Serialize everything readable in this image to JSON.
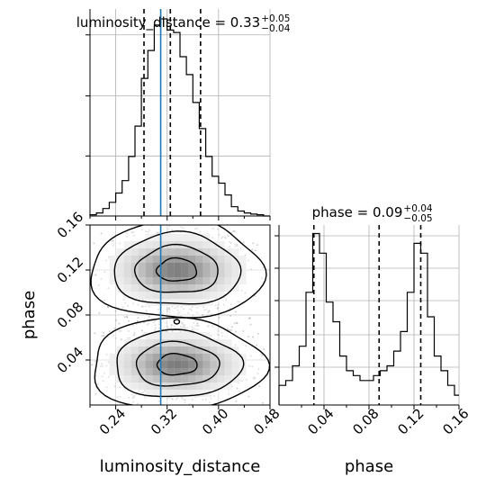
{
  "chart_data": {
    "type": "corner",
    "truth": {
      "luminosity_distance": 0.31
    },
    "parameters": [
      {
        "name": "luminosity_distance",
        "xlabel": "luminosity_distance",
        "title_text": "luminosity_distance = 0.33",
        "title_upper": "+0.05",
        "title_lower": "−0.04",
        "range": [
          0.2,
          0.48
        ],
        "ticks": [
          0.24,
          0.32,
          0.4,
          0.48
        ],
        "tick_labels": [
          "0.24",
          "0.32",
          "0.40",
          "0.48"
        ],
        "quantiles": [
          0.284,
          0.325,
          0.372
        ],
        "hist": {
          "edges": [
            0.2,
            0.21,
            0.22,
            0.23,
            0.24,
            0.25,
            0.26,
            0.27,
            0.28,
            0.29,
            0.3,
            0.31,
            0.32,
            0.33,
            0.34,
            0.35,
            0.36,
            0.37,
            0.38,
            0.39,
            0.4,
            0.41,
            0.42,
            0.43,
            0.44,
            0.45,
            0.46,
            0.47,
            0.48
          ],
          "counts": [
            2,
            5,
            12,
            22,
            37,
            57,
            96,
            145,
            222,
            267,
            308,
            318,
            300,
            296,
            257,
            228,
            183,
            141,
            96,
            64,
            53,
            34,
            15,
            8,
            5,
            3,
            2,
            0
          ]
        }
      },
      {
        "name": "phase",
        "xlabel": "phase",
        "ylabel": "phase",
        "title_text": "phase = 0.09",
        "title_upper": "+0.04",
        "title_lower": "−0.05",
        "range": [
          0.0,
          0.16
        ],
        "ticks": [
          0.04,
          0.08,
          0.12,
          0.16
        ],
        "tick_labels": [
          "0.04",
          "0.08",
          "0.12",
          "0.16"
        ],
        "quantiles": [
          0.031,
          0.089,
          0.126
        ],
        "hist": {
          "edges": [
            0.0,
            0.006,
            0.012,
            0.018,
            0.024,
            0.03,
            0.036,
            0.042,
            0.048,
            0.054,
            0.06,
            0.066,
            0.072,
            0.078,
            0.084,
            0.09,
            0.096,
            0.102,
            0.108,
            0.114,
            0.12,
            0.126,
            0.132,
            0.138,
            0.144,
            0.15,
            0.156,
            0.16
          ],
          "counts": [
            0.4,
            0.5,
            0.8,
            1.2,
            2.3,
            3.5,
            3.1,
            2.1,
            1.7,
            1.0,
            0.7,
            0.6,
            0.5,
            0.5,
            0.6,
            0.7,
            0.8,
            1.1,
            1.5,
            2.3,
            3.3,
            3.1,
            1.8,
            1.0,
            0.7,
            0.4,
            0.2
          ]
        }
      }
    ],
    "density": {
      "modes": [
        {
          "x": 0.335,
          "y": 0.12,
          "sx": 0.045,
          "sy": 0.013,
          "weight": 1.0
        },
        {
          "x": 0.335,
          "y": 0.036,
          "sx": 0.045,
          "sy": 0.012,
          "weight": 1.05
        }
      ]
    }
  }
}
